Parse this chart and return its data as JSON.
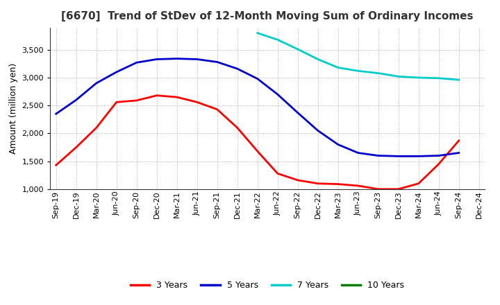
{
  "title": "[6670]  Trend of StDev of 12-Month Moving Sum of Ordinary Incomes",
  "ylabel": "Amount (million yen)",
  "ylim": [
    1000,
    3900
  ],
  "yticks": [
    1000,
    1500,
    2000,
    2500,
    3000,
    3500
  ],
  "background_color": "#ffffff",
  "plot_bg_color": "#ffffff",
  "grid_color": "#aaaaaa",
  "title_fontsize": 11,
  "label_fontsize": 9,
  "tick_fontsize": 8,
  "line_width": 2.0,
  "x_labels": [
    "Sep-19",
    "Dec-19",
    "Mar-20",
    "Jun-20",
    "Sep-20",
    "Dec-20",
    "Mar-21",
    "Jun-21",
    "Sep-21",
    "Dec-21",
    "Mar-22",
    "Jun-22",
    "Sep-22",
    "Dec-22",
    "Mar-23",
    "Jun-23",
    "Sep-23",
    "Dec-23",
    "Mar-24",
    "Jun-24",
    "Sep-24",
    "Dec-24"
  ],
  "series": {
    "3 Years": {
      "color": "#ff0000",
      "values": [
        1430,
        1750,
        2100,
        2560,
        2590,
        2680,
        2650,
        2560,
        2430,
        2100,
        1680,
        1280,
        1160,
        1100,
        1090,
        1060,
        1000,
        1000,
        1100,
        1450,
        1870,
        null
      ]
    },
    "5 Years": {
      "color": "#0000cc",
      "values": [
        2350,
        2600,
        2900,
        3100,
        3270,
        3330,
        3340,
        3330,
        3280,
        3160,
        2980,
        2700,
        2370,
        2050,
        1800,
        1650,
        1600,
        1590,
        1590,
        1600,
        1650,
        null
      ]
    },
    "7 Years": {
      "color": "#00cccc",
      "values": [
        null,
        null,
        null,
        null,
        null,
        null,
        null,
        null,
        null,
        null,
        3800,
        3680,
        3510,
        3330,
        3180,
        3120,
        3080,
        3020,
        3000,
        2990,
        2960,
        null
      ]
    },
    "10 Years": {
      "color": "#008000",
      "values": [
        null,
        null,
        null,
        null,
        null,
        null,
        null,
        null,
        null,
        null,
        null,
        null,
        null,
        null,
        null,
        null,
        null,
        null,
        null,
        null,
        null,
        null
      ]
    }
  },
  "legend_labels": [
    "3 Years",
    "5 Years",
    "7 Years",
    "10 Years"
  ],
  "legend_colors": [
    "#ff0000",
    "#0000cc",
    "#00cccc",
    "#008000"
  ]
}
